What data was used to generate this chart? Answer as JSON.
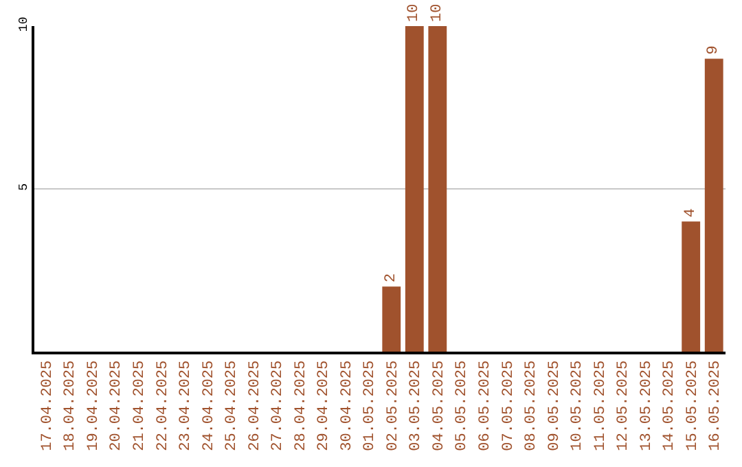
{
  "chart_data": {
    "type": "bar",
    "categories": [
      "17.04.2025",
      "18.04.2025",
      "19.04.2025",
      "20.04.2025",
      "21.04.2025",
      "22.04.2025",
      "23.04.2025",
      "24.04.2025",
      "25.04.2025",
      "26.04.2025",
      "27.04.2025",
      "28.04.2025",
      "29.04.2025",
      "30.04.2025",
      "01.05.2025",
      "02.05.2025",
      "03.05.2025",
      "04.05.2025",
      "05.05.2025",
      "06.05.2025",
      "07.05.2025",
      "08.05.2025",
      "09.05.2025",
      "10.05.2025",
      "11.05.2025",
      "12.05.2025",
      "13.05.2025",
      "14.05.2025",
      "15.05.2025",
      "16.05.2025"
    ],
    "series": [
      {
        "color": "#a0522d",
        "values": [
          0,
          0,
          0,
          0,
          0,
          0,
          0,
          0,
          0,
          0,
          0,
          0,
          0,
          0,
          0,
          2,
          10,
          10,
          0,
          0,
          0,
          0,
          0,
          0,
          0,
          0,
          0,
          0,
          4,
          9
        ]
      }
    ],
    "value_labels": [
      null,
      null,
      null,
      null,
      null,
      null,
      null,
      null,
      null,
      null,
      null,
      null,
      null,
      null,
      null,
      "2",
      "10",
      "10",
      null,
      null,
      null,
      null,
      null,
      null,
      null,
      null,
      null,
      null,
      "4",
      "9"
    ],
    "ylim": [
      0,
      10
    ],
    "yticks": [
      5,
      10
    ],
    "grid": "y",
    "legend": false
  }
}
